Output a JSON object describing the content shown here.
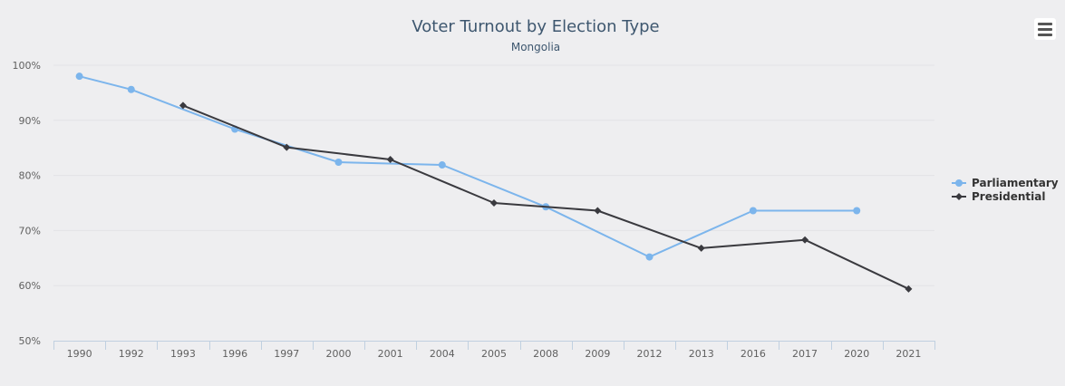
{
  "chart_data": {
    "type": "line",
    "title": "Voter Turnout by Election Type",
    "subtitle": "Mongolia",
    "categories": [
      "1990",
      "1992",
      "1993",
      "1996",
      "1997",
      "2000",
      "2001",
      "2004",
      "2005",
      "2008",
      "2009",
      "2012",
      "2013",
      "2016",
      "2017",
      "2020",
      "2021"
    ],
    "ylim": [
      50,
      100
    ],
    "yticks": [
      "50%",
      "60%",
      "70%",
      "80%",
      "90%",
      "100%"
    ],
    "grid": true,
    "legend_position": "right",
    "series": [
      {
        "name": "Parliamentary",
        "color": "#7cb5ec",
        "marker": "circle",
        "values": [
          98.0,
          95.6,
          null,
          88.4,
          null,
          82.4,
          null,
          81.9,
          null,
          74.3,
          null,
          65.2,
          null,
          73.6,
          null,
          73.6,
          null
        ]
      },
      {
        "name": "Presidential",
        "color": "#3a3a3f",
        "marker": "diamond",
        "values": [
          null,
          null,
          92.7,
          null,
          85.1,
          null,
          82.9,
          null,
          75.0,
          null,
          73.6,
          null,
          66.8,
          null,
          68.3,
          null,
          59.4
        ]
      }
    ]
  },
  "menu": {
    "icon": "hamburger-menu-icon"
  }
}
